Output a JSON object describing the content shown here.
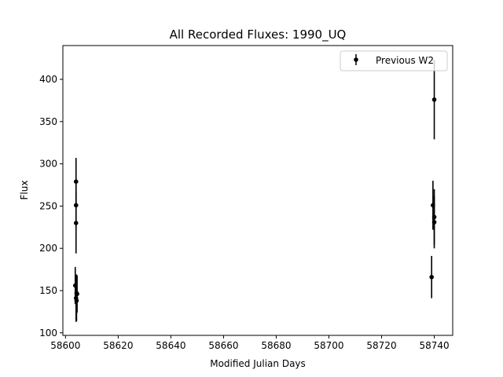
{
  "chart_data": {
    "type": "scatter",
    "title": "All Recorded Fluxes: 1990_UQ",
    "xlabel": "Modified Julian Days",
    "ylabel": "Flux",
    "xlim": [
      58599,
      58747
    ],
    "ylim": [
      97,
      440
    ],
    "xticks": [
      58600,
      58620,
      58640,
      58660,
      58680,
      58700,
      58720,
      58740
    ],
    "yticks": [
      100,
      150,
      200,
      250,
      300,
      350,
      400
    ],
    "grid": false,
    "legend_position": "top-right",
    "series": [
      {
        "name": "Previous W2",
        "marker": "circle",
        "color": "#000000",
        "points": [
          {
            "x": 58604.0,
            "y": 279,
            "err": 28
          },
          {
            "x": 58604.0,
            "y": 251,
            "err": 28
          },
          {
            "x": 58604.0,
            "y": 230,
            "err": 36
          },
          {
            "x": 58603.7,
            "y": 156,
            "err": 22
          },
          {
            "x": 58604.2,
            "y": 147,
            "err": 22
          },
          {
            "x": 58604.4,
            "y": 146,
            "err": 22
          },
          {
            "x": 58604.0,
            "y": 141,
            "err": 28
          },
          {
            "x": 58604.2,
            "y": 138,
            "err": 24
          },
          {
            "x": 58740.0,
            "y": 376,
            "err": 47
          },
          {
            "x": 58739.5,
            "y": 251,
            "err": 29
          },
          {
            "x": 58740.0,
            "y": 237,
            "err": 33
          },
          {
            "x": 58740.0,
            "y": 231,
            "err": 31
          },
          {
            "x": 58739.0,
            "y": 166,
            "err": 25
          }
        ]
      }
    ]
  }
}
